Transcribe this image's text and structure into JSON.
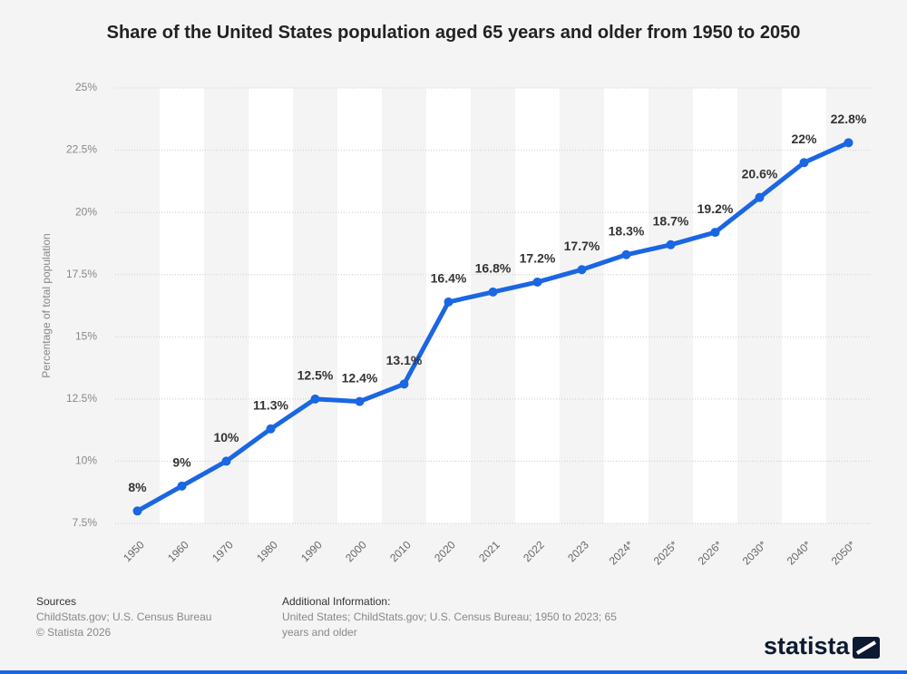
{
  "chart_data": {
    "type": "line",
    "title": "Share of the United States population aged 65 years and older from 1950 to 2050",
    "y_label": "Percentage of total population",
    "categories": [
      "1950",
      "1960",
      "1970",
      "1980",
      "1990",
      "2000",
      "2010",
      "2020",
      "2021",
      "2022",
      "2023",
      "2024*",
      "2025*",
      "2026*",
      "2030*",
      "2040*",
      "2050*"
    ],
    "series": [
      {
        "color": "#1a66e3",
        "values": [
          8,
          9,
          10,
          11.3,
          12.5,
          12.4,
          13.1,
          16.4,
          16.8,
          17.2,
          17.7,
          18.3,
          18.7,
          19.2,
          20.6,
          22,
          22.8
        ],
        "value_labels": [
          "8%",
          "9%",
          "10%",
          "11.3%",
          "12.5%",
          "12.4%",
          "13.1%",
          "16.4%",
          "16.8%",
          "17.2%",
          "17.7%",
          "18.3%",
          "18.7%",
          "19.2%",
          "20.6%",
          "22%",
          "22.8%"
        ]
      }
    ],
    "ylim": [
      7.5,
      25
    ],
    "yticks": [
      {
        "value": 7.5,
        "label": "7.5%"
      },
      {
        "value": 10,
        "label": "10%"
      },
      {
        "value": 12.5,
        "label": "12.5%"
      },
      {
        "value": 15,
        "label": "15%"
      },
      {
        "value": 17.5,
        "label": "17.5%"
      },
      {
        "value": 20,
        "label": "20%"
      },
      {
        "value": 22.5,
        "label": "22.5%"
      },
      {
        "value": 25,
        "label": "25%"
      }
    ],
    "grid": true
  },
  "footer": {
    "sources_title": "Sources",
    "sources": "ChildStats.gov; U.S. Census Bureau",
    "copyright": "© Statista 2026",
    "info_title": "Additional Information:",
    "info": "United States; ChildStats.gov; U.S. Census Bureau; 1950 to 2023; 65 years and older",
    "logo": "statista"
  }
}
